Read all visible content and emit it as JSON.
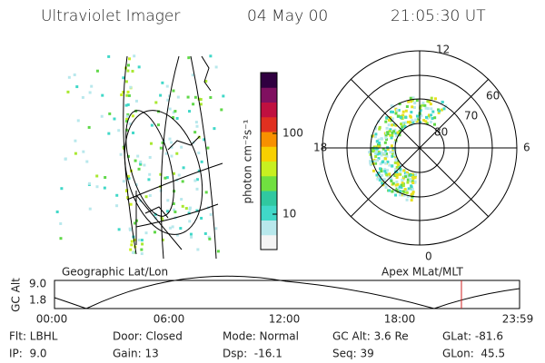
{
  "header": {
    "title": "Ultraviolet Imager",
    "date": "04 May 00",
    "time": "21:05:30 UT"
  },
  "colorbar": {
    "label": "photon cm⁻²s⁻¹",
    "ticks": [
      "100",
      "10"
    ]
  },
  "panels": {
    "left": "Geographic Lat/Lon",
    "right": "Apex MLat/MLT"
  },
  "polar": {
    "mlt": [
      "12",
      "6",
      "0",
      "18"
    ],
    "mlat": [
      "80",
      "70",
      "60"
    ]
  },
  "alt_plot": {
    "ylabel": "GC Alt",
    "yticks": [
      "9.0",
      "1.8"
    ],
    "xticks": [
      "00:00",
      "06:00",
      "12:00",
      "18:00",
      "23:59"
    ]
  },
  "info": {
    "rows": [
      [
        "Flt: LBHL",
        "Door: Closed",
        "Mode: Normal",
        "GC Alt: 3.6 Re",
        "GLat: -81.6"
      ],
      [
        "IP:  9.0",
        "Gain: 13",
        "Dsp:  -16.1",
        "Seq: 39",
        "GLon:  45.5"
      ]
    ]
  }
}
